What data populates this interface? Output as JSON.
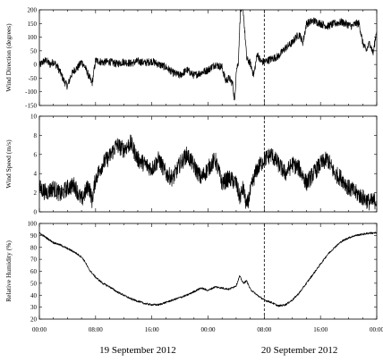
{
  "chart_data": [
    {
      "type": "line",
      "ylabel": "Wind Direction (degrees)",
      "ylim": [
        -150,
        200
      ],
      "yticks": [
        -150,
        -100,
        -50,
        0,
        50,
        100,
        150,
        200
      ],
      "x_range_hours": [
        0,
        48
      ],
      "vline_hour": 32,
      "series": [
        {
          "x": [
            0,
            0.5,
            1,
            1.5,
            2,
            2.5,
            3,
            3.5,
            4,
            4.5,
            5,
            5.5,
            6,
            6.5,
            7,
            7.5,
            8,
            9,
            10,
            11,
            12,
            13,
            14,
            15,
            16,
            17,
            18,
            19,
            20,
            21,
            22,
            23,
            24,
            25,
            26,
            26.5,
            27,
            27.5,
            27.8,
            28,
            28.3,
            28.6,
            29,
            29.5,
            30,
            30.5,
            31,
            31.5,
            32,
            33,
            34,
            35,
            36,
            36.5,
            37,
            37.5,
            38,
            39,
            40,
            41,
            42,
            43,
            43.5,
            44,
            44.5,
            45,
            45.5,
            46,
            46.5,
            47,
            47.5,
            48
          ],
          "values": [
            -5,
            10,
            15,
            0,
            10,
            -5,
            -30,
            -60,
            -80,
            -40,
            -20,
            -10,
            10,
            -10,
            -40,
            -70,
            15,
            8,
            10,
            2,
            10,
            4,
            12,
            6,
            12,
            0,
            -10,
            -30,
            -40,
            -20,
            -40,
            -30,
            -20,
            0,
            -10,
            -60,
            -50,
            -70,
            -140,
            -20,
            5,
            200,
            200,
            20,
            5,
            -40,
            40,
            10,
            10,
            20,
            30,
            60,
            80,
            100,
            110,
            80,
            150,
            160,
            150,
            140,
            150,
            155,
            150,
            145,
            140,
            150,
            150,
            80,
            50,
            80,
            40,
            130
          ]
        }
      ]
    },
    {
      "type": "line",
      "ylabel": "Wind Speed (m/s)",
      "ylim": [
        0,
        10
      ],
      "yticks": [
        0,
        2,
        4,
        6,
        8,
        10
      ],
      "x_range_hours": [
        0,
        48
      ],
      "vline_hour": 32,
      "series": [
        {
          "x": [
            0,
            1,
            2,
            3,
            4,
            5,
            6,
            7,
            7.5,
            8,
            9,
            10,
            11,
            12,
            13,
            14,
            15,
            16,
            17,
            18,
            19,
            20,
            21,
            22,
            23,
            24,
            25,
            26,
            27,
            28,
            28.5,
            29,
            29.5,
            30,
            30.5,
            31,
            32,
            33,
            34,
            35,
            36,
            37,
            38,
            39,
            40,
            41,
            42,
            43,
            44,
            45,
            46,
            47,
            48
          ],
          "values": [
            2.5,
            2.0,
            2.5,
            1.8,
            2.5,
            2.8,
            1.2,
            2.8,
            1.2,
            3.5,
            5.0,
            5.8,
            7.0,
            6.5,
            7.2,
            5.5,
            5.0,
            4.5,
            5.5,
            4.0,
            3.5,
            5.0,
            6.0,
            4.8,
            3.5,
            4.5,
            5.5,
            3.0,
            3.5,
            3.0,
            1.5,
            2.5,
            0.5,
            2.0,
            3.5,
            4.5,
            5.5,
            6.0,
            5.0,
            4.0,
            5.0,
            4.5,
            3.0,
            4.0,
            5.0,
            5.5,
            4.0,
            3.5,
            2.5,
            2.0,
            1.5,
            1.0,
            1.2
          ]
        }
      ]
    },
    {
      "type": "line",
      "ylabel": "Relative Humidity (%)",
      "ylim": [
        20,
        100
      ],
      "yticks": [
        20,
        30,
        40,
        50,
        60,
        70,
        80,
        90,
        100
      ],
      "x_range_hours": [
        0,
        48
      ],
      "vline_hour": 32,
      "xtick_labels": [
        "00:00",
        "08:00",
        "16:00",
        "00:00",
        "08:00",
        "16:00",
        "00:00"
      ],
      "xtick_hours": [
        0,
        8,
        16,
        24,
        32,
        40,
        48
      ],
      "date_labels": [
        "19 September 2012",
        "20 September 2012"
      ],
      "series": [
        {
          "x": [
            0,
            1,
            2,
            3,
            4,
            5,
            6,
            6.5,
            7,
            8,
            9,
            10,
            11,
            12,
            13,
            14,
            15,
            16,
            17,
            18,
            19,
            20,
            21,
            22,
            23,
            24,
            25,
            26,
            27,
            28,
            28.5,
            29,
            29.5,
            30,
            31,
            32,
            33,
            34,
            35,
            36,
            37,
            38,
            39,
            40,
            41,
            42,
            43,
            44,
            45,
            46,
            47,
            48
          ],
          "values": [
            92,
            88,
            84,
            82,
            79,
            76,
            72,
            68,
            62,
            55,
            50,
            47,
            43,
            40,
            37,
            35,
            33,
            32,
            32,
            34,
            36,
            38,
            40,
            43,
            46,
            44,
            47,
            46,
            45,
            48,
            56,
            50,
            52,
            45,
            40,
            36,
            34,
            31,
            32,
            36,
            42,
            50,
            58,
            66,
            74,
            80,
            85,
            88,
            90,
            91,
            92,
            92
          ]
        }
      ]
    }
  ]
}
